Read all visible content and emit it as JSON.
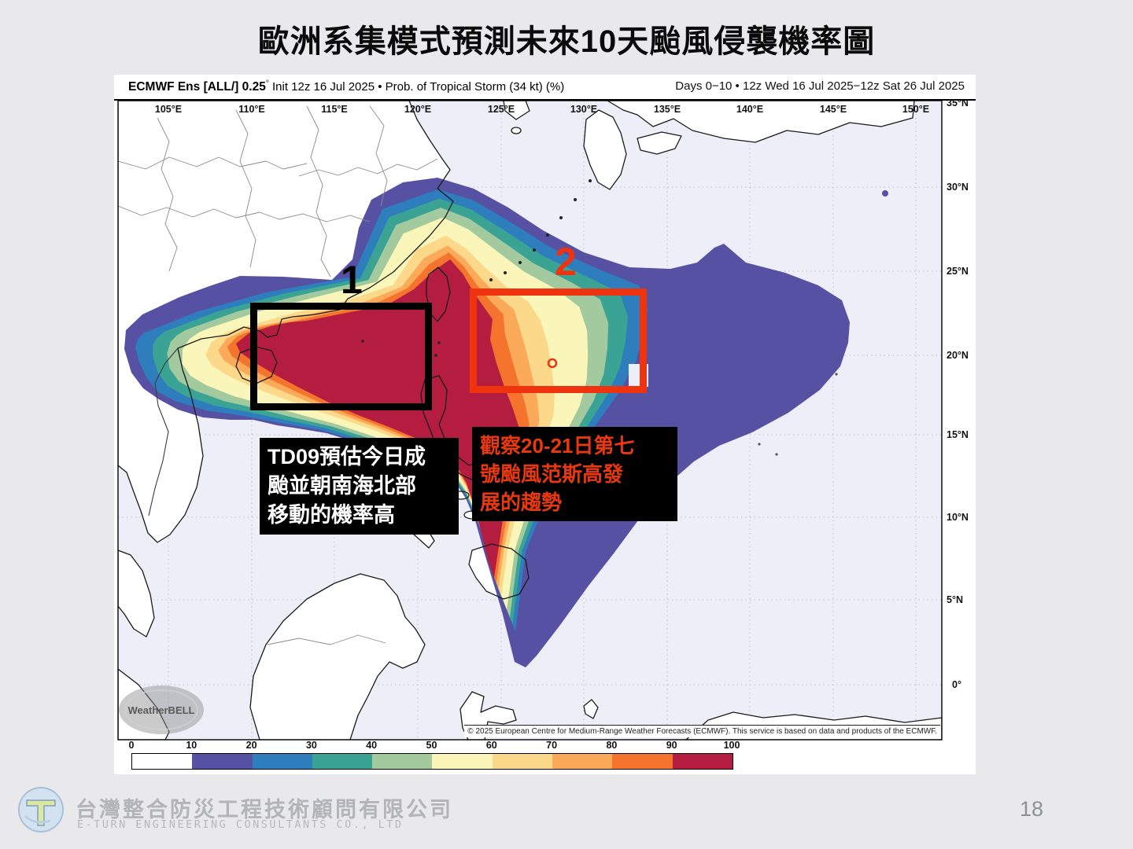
{
  "slide": {
    "title": "歐洲系集模式預測未來10天颱風侵襲機率圖",
    "page_number": "18"
  },
  "figure": {
    "header": {
      "left_bold": "ECMWF Ens [ALL/] 0.25",
      "left_degree": "°",
      "left_rest": " Init 12z 16 Jul 2025 • Prob. of Tropical Storm (34 kt) (%)",
      "right": "Days 0−10 • 12z Wed 16 Jul 2025−12z Sat 26 Jul 2025"
    },
    "map": {
      "lon_labels": [
        "105°E",
        "110°E",
        "115°E",
        "120°E",
        "125°E",
        "130°E",
        "135°E",
        "140°E",
        "145°E",
        "150°E"
      ],
      "lat_labels": [
        "35°N",
        "30°N",
        "25°N",
        "20°N",
        "15°N",
        "10°N",
        "5°N",
        "0°"
      ],
      "watermark": "WeatherBELL",
      "copyright": "© 2025 European Centre for Medium-Range Weather Forecasts (ECMWF). This service is based on data and products of the ECMWF."
    },
    "colorbar": {
      "labels": [
        "0",
        "10",
        "20",
        "30",
        "40",
        "50",
        "60",
        "70",
        "80",
        "90",
        "100"
      ],
      "colors": [
        "#ffffff",
        "#5751a4",
        "#2e7ebd",
        "#3aa393",
        "#a3c99f",
        "#faf5b8",
        "#fcd98a",
        "#fbaa5a",
        "#f4742e",
        "#b51d40"
      ]
    }
  },
  "annotations": {
    "region1": {
      "number": "1",
      "lines": [
        "TD09預估今日成",
        "颱並朝南海北部",
        "移動的機率高"
      ],
      "box_color": "#000000"
    },
    "region2": {
      "number": "2",
      "lines": [
        "觀察20-21日第七",
        "號颱風范斯高發",
        "展的趨勢"
      ],
      "box_color": "#f0330f",
      "text_color": "#e8380f"
    }
  },
  "footer": {
    "company_zh": "台灣整合防災工程技術顧問有限公司",
    "company_en": "E-TURN ENGINEERING CONSULTANTS CO., LTD"
  },
  "colors": {
    "ocean": "#edeef7",
    "land": "#ffffff",
    "page_background": "#e9e9ec",
    "accent_red": "#f0330f"
  },
  "chart_data": {
    "type": "heatmap",
    "title": "Prob. of Tropical Storm (34 kt) (%)",
    "model": "ECMWF Ens [ALL/] 0.25°",
    "init_time": "12z 16 Jul 2025",
    "valid_period": "Days 0−10 • 12z Wed 16 Jul 2025 − 12z Sat 26 Jul 2025",
    "lon_range_deg_e": [
      102.5,
      151.5
    ],
    "lat_range_deg_n": [
      -3.5,
      35
    ],
    "grid": "5-degree dotted graticule, labels 105°E–150°E and 0°–35°N",
    "levels_percent": [
      0,
      10,
      20,
      30,
      40,
      50,
      60,
      70,
      80,
      90,
      100
    ],
    "palette": [
      "#ffffff",
      "#5751a4",
      "#2e7ebd",
      "#3aa393",
      "#a3c99f",
      "#faf5b8",
      "#fcd98a",
      "#fbaa5a",
      "#f4742e",
      "#b51d40"
    ],
    "features": [
      {
        "label": "1",
        "description": "TD09: 90–100% probability core over the northern South China Sea from Hainan to the Luzon Strait, approx. 16.5–23°N / 110–116°E; black highlight box",
        "max_percent": 100
      },
      {
        "label": "2",
        "description": "Watch area for Typhoon #7 Francisco development on 20–21 Jul, approx. 17.5–24°N / 123–134°E; high (40–100%) probabilities in west half falling to 10–40% toward the east; red highlight box",
        "max_percent": 100
      },
      {
        "label": "storm-marker",
        "description": "small red circle marker near 128.1°E, 19.4°N"
      },
      {
        "label": "northeast-lobe",
        "description": "broad 10–20% lobe extending northeast to ~137°E between 20–27°N"
      },
      {
        "label": "isolated-patch",
        "description": "isolated 10–20% patch near 141–143°E, 19.5–23.5°N"
      },
      {
        "label": "tail",
        "description": "probability tail extending SSE east of Luzon down to ~10°N"
      }
    ]
  }
}
